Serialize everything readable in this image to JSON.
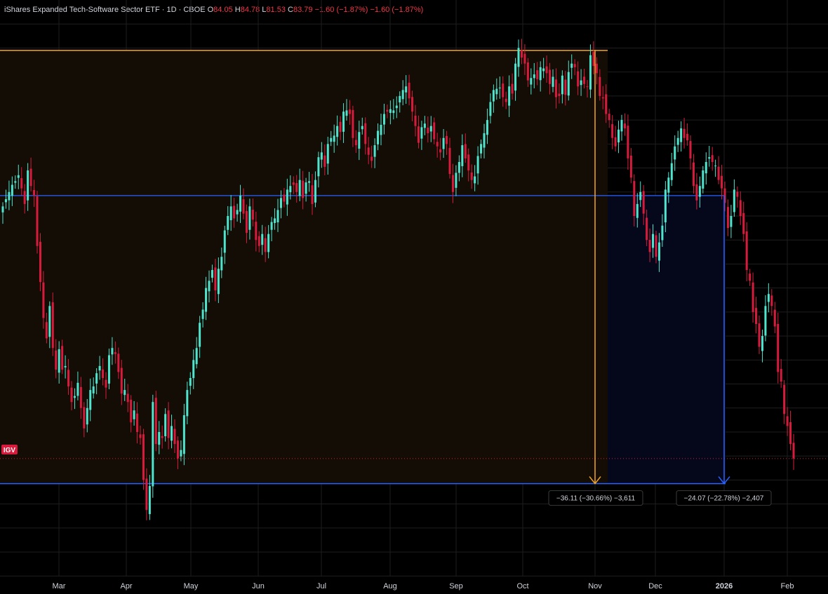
{
  "header": {
    "title": "iShares Expanded Tech-Software Sector ETF · 1D · CBOE",
    "o_label": "O",
    "o": "84.05",
    "h_label": "H",
    "h": "84.78",
    "l_label": "L",
    "l": "81.53",
    "c_label": "C",
    "c": "83.79",
    "change": "−1.60 (−1.87%)",
    "change2": "−1.60 (−1.87%)"
  },
  "symbol_badge": "IGV",
  "colors": {
    "up": "#4ee5cf",
    "down": "#d81b3c",
    "orange": "#f5a623",
    "blue": "#2962ff",
    "grid": "#1e1e1e",
    "orange_fill": "#140d05",
    "blue_fill": "#05081a"
  },
  "measurements": [
    {
      "label": "−36.11 (−30.66%) −3,611",
      "from_price": 117.8,
      "to_price": 81.7,
      "color": "orange"
    },
    {
      "label": "−24.07 (−22.78%) −2,407",
      "from_price": 105.7,
      "to_price": 81.7,
      "color": "blue"
    }
  ],
  "chart_data": {
    "type": "candlestick",
    "x_tick_labels": [
      "Mar",
      "Apr",
      "May",
      "Jun",
      "Jul",
      "Aug",
      "Sep",
      "Oct",
      "Nov",
      "Dec",
      "2026",
      "Feb"
    ],
    "y_range": [
      72.5,
      122
    ],
    "horizontal_levels": [
      {
        "price": 117.8,
        "color": "orange"
      },
      {
        "price": 105.7,
        "color": "blue"
      },
      {
        "price": 81.7,
        "color": "blue"
      }
    ],
    "last_price": 83.79,
    "closes": [
      104.8,
      105.4,
      106.0,
      106.6,
      106.9,
      107.4,
      106.3,
      105.0,
      107.8,
      106.5,
      105.7,
      101.5,
      98.5,
      95.5,
      93.8,
      96.5,
      93.0,
      91.2,
      92.9,
      91.2,
      91.5,
      89.8,
      88.5,
      89.0,
      90.1,
      88.0,
      86.3,
      88.0,
      89.5,
      89.8,
      90.9,
      91.5,
      90.5,
      89.7,
      92.4,
      93.0,
      92.5,
      91.0,
      89.2,
      89.5,
      88.5,
      86.8,
      87.8,
      86.0,
      85.5,
      82.0,
      79.5,
      81.5,
      88.5,
      85.0,
      86.0,
      85.5,
      87.5,
      85.5,
      86.5,
      85.0,
      83.8,
      84.5,
      87.4,
      89.5,
      90.5,
      92.0,
      93.0,
      95.1,
      96.2,
      98.0,
      98.6,
      99.5,
      97.8,
      99.6,
      100.6,
      102.8,
      104.0,
      104.8,
      103.8,
      104.5,
      105.7,
      104.2,
      102.6,
      104.8,
      103.7,
      102.0,
      101.5,
      102.5,
      101.0,
      102.5,
      103.5,
      103.8,
      104.5,
      105.5,
      105.2,
      106.2,
      106.5,
      106.6,
      106.0,
      107.0,
      105.5,
      106.8,
      106.9,
      105.0,
      107.0,
      108.9,
      109.3,
      108.1,
      110.0,
      110.5,
      110.7,
      111.5,
      111.0,
      112.7,
      112.8,
      112.5,
      110.5,
      109.9,
      111.0,
      111.5,
      110.0,
      109.1,
      108.6,
      109.9,
      111.1,
      111.6,
      112.5,
      112.7,
      112.9,
      112.8,
      113.2,
      114.0,
      114.5,
      114.8,
      113.8,
      112.7,
      111.5,
      110.1,
      111.4,
      111.7,
      110.9,
      111.5,
      110.4,
      109.8,
      109.3,
      110.5,
      110.0,
      107.5,
      106.0,
      107.6,
      108.5,
      109.9,
      108.8,
      107.8,
      107.0,
      107.3,
      109.0,
      110.0,
      110.9,
      112.0,
      113.5,
      114.5,
      114.6,
      114.7,
      113.9,
      113.5,
      114.8,
      114.2,
      116.7,
      118.0,
      117.2,
      116.7,
      115.3,
      115.5,
      115.8,
      115.4,
      116.4,
      116.3,
      115.9,
      115.0,
      115.6,
      113.9,
      114.0,
      115.7,
      114.1,
      116.0,
      116.7,
      116.4,
      114.8,
      115.3,
      115.0,
      114.8,
      117.4,
      116.5,
      115.9,
      114.0,
      113.8,
      112.5,
      112.0,
      110.5,
      109.8,
      111.2,
      112.0,
      111.3,
      108.8,
      107.2,
      104.0,
      105.0,
      106.0,
      104.2,
      102.0,
      101.0,
      102.5,
      100.6,
      101.8,
      103.2,
      106.2,
      107.2,
      108.4,
      109.8,
      110.5,
      111.3,
      110.5,
      110.3,
      108.8,
      106.5,
      105.3,
      106.5,
      107.8,
      108.5,
      108.9,
      108.5,
      108.2,
      107.0,
      106.3,
      105.1,
      103.0,
      104.0,
      106.2,
      105.6,
      104.0,
      102.5,
      99.5,
      98.6,
      96.0,
      95.0,
      93.1,
      94.0,
      96.5,
      97.5,
      96.5,
      94.8,
      91.0,
      90.2,
      87.5,
      86.5,
      85.0,
      83.79
    ]
  }
}
